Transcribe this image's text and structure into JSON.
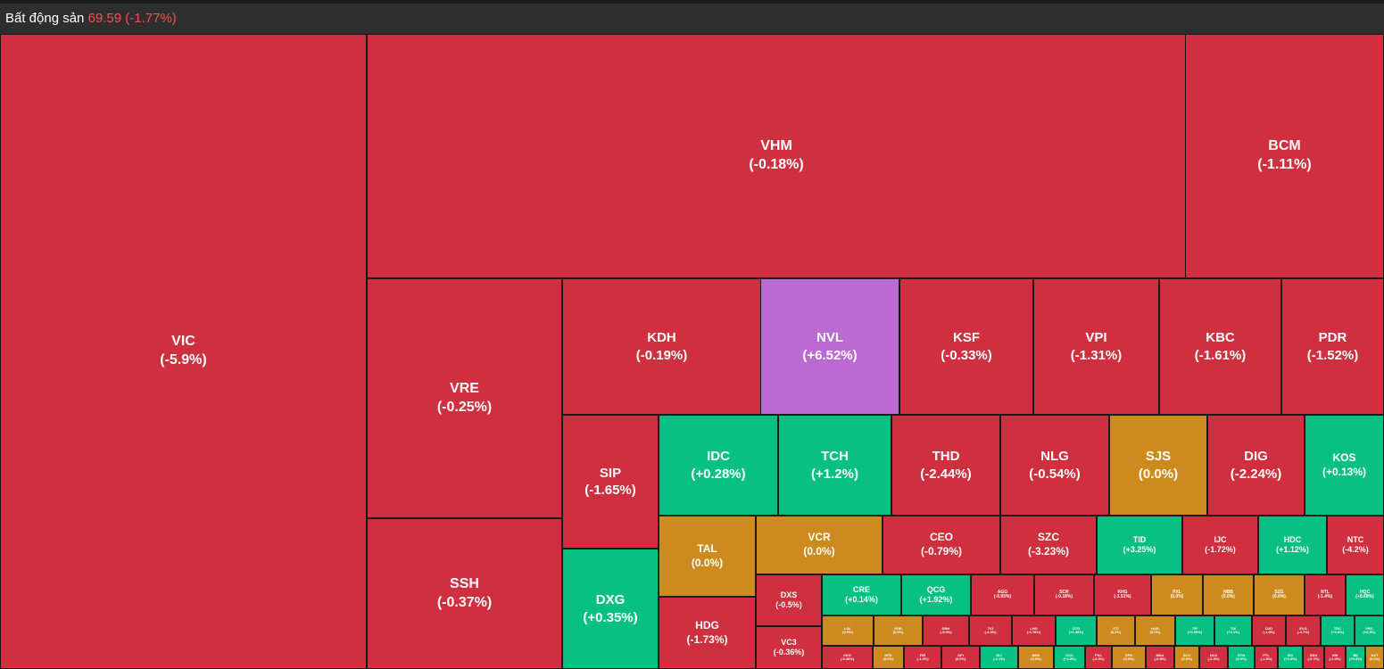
{
  "header": {
    "sector": "Bất động sản",
    "index": "69.59 (-1.77%)"
  },
  "colors": {
    "down": "#cf2f3e",
    "up": "#08c082",
    "flat": "#cc8a1f",
    "ceiling": "#b96bd1"
  },
  "tiles": [
    {
      "code": "VIC",
      "change": "(-5.9%)"
    },
    {
      "code": "VHM",
      "change": "(-0.18%)"
    },
    {
      "code": "BCM",
      "change": "(-1.11%)"
    },
    {
      "code": "VRE",
      "change": "(-0.25%)"
    },
    {
      "code": "SSH",
      "change": "(-0.37%)"
    },
    {
      "code": "KDH",
      "change": "(-0.19%)"
    },
    {
      "code": "NVL",
      "change": "(+6.52%)"
    },
    {
      "code": "KSF",
      "change": "(-0.33%)"
    },
    {
      "code": "VPI",
      "change": "(-1.31%)"
    },
    {
      "code": "KBC",
      "change": "(-1.61%)"
    },
    {
      "code": "PDR",
      "change": "(-1.52%)"
    },
    {
      "code": "SIP",
      "change": "(-1.65%)"
    },
    {
      "code": "DXG",
      "change": "(+0.35%)"
    },
    {
      "code": "IDC",
      "change": "(+0.28%)"
    },
    {
      "code": "TCH",
      "change": "(+1.2%)"
    },
    {
      "code": "THD",
      "change": "(-2.44%)"
    },
    {
      "code": "NLG",
      "change": "(-0.54%)"
    },
    {
      "code": "SJS",
      "change": "(0.0%)"
    },
    {
      "code": "DIG",
      "change": "(-2.24%)"
    },
    {
      "code": "KOS",
      "change": "(+0.13%)"
    },
    {
      "code": "TAL",
      "change": "(0.0%)"
    },
    {
      "code": "HDG",
      "change": "(-1.73%)"
    },
    {
      "code": "VCR",
      "change": "(0.0%)"
    },
    {
      "code": "CEO",
      "change": "(-0.79%)"
    },
    {
      "code": "SZC",
      "change": "(-3.23%)"
    },
    {
      "code": "TID",
      "change": "(+3.25%)"
    },
    {
      "code": "IJC",
      "change": "(-1.72%)"
    },
    {
      "code": "HDC",
      "change": "(+1.12%)"
    },
    {
      "code": "NTC",
      "change": "(-4.2%)"
    },
    {
      "code": "DXS",
      "change": "(-0.5%)"
    },
    {
      "code": "VC3",
      "change": "(-0.36%)"
    },
    {
      "code": "CRE",
      "change": "(+0.14%)"
    },
    {
      "code": "QCG",
      "change": "(+1.92%)"
    },
    {
      "code": "AGG",
      "change": "(-0.93%)"
    },
    {
      "code": "SCR",
      "change": "(-0.18%)"
    },
    {
      "code": "KHG",
      "change": "(-1.51%)"
    },
    {
      "code": "PXL",
      "change": "(0.0%)"
    },
    {
      "code": "NBB",
      "change": "(0.0%)"
    },
    {
      "code": "SZG",
      "change": "(0.0%)"
    },
    {
      "code": "NTL",
      "change": "(-1.4%)"
    },
    {
      "code": "HQC",
      "change": "(+0.68%)"
    },
    {
      "code": "LGL",
      "change": "(0.0%)"
    },
    {
      "code": "SGR",
      "change": "(0.0%)"
    },
    {
      "code": "DRH",
      "change": "(-5.0%)"
    },
    {
      "code": "TIG",
      "change": "(-4.4%)"
    },
    {
      "code": "LHG",
      "change": "(-0.78%)"
    },
    {
      "code": "DTD",
      "change": "(+1.48%)"
    },
    {
      "code": "ITC",
      "change": "(0.0%)"
    },
    {
      "code": "HAR",
      "change": "(0.0%)"
    },
    {
      "code": "TIP",
      "change": "(+0.55%)"
    },
    {
      "code": "TIX",
      "change": "(+0.1%)"
    },
    {
      "code": "D2D",
      "change": "(-1.9%)"
    },
    {
      "code": "EVG",
      "change": "(-4.7%)"
    },
    {
      "code": "TDC",
      "change": "(+0.6%)"
    },
    {
      "code": "VRC",
      "change": "(+0.9%)"
    },
    {
      "code": "CKG",
      "change": "(-0.46%)"
    },
    {
      "code": "HPX",
      "change": "(0.0%)"
    },
    {
      "code": "FIR",
      "change": "(-1.2%)"
    },
    {
      "code": "API",
      "change": "(0.0%)"
    },
    {
      "code": "IDJ",
      "change": "(-2.1%)"
    },
    {
      "code": "NDN",
      "change": "(0.0%)"
    },
    {
      "code": "CSC",
      "change": "(+1.0%)"
    },
    {
      "code": "PVL",
      "change": "(-3.0%)"
    },
    {
      "code": "VPH",
      "change": "(0.0%)"
    },
    {
      "code": "NHA",
      "change": "(-0.8%)"
    },
    {
      "code": "DLG",
      "change": "(0.0%)"
    },
    {
      "code": "HLD",
      "change": "(-2.3%)"
    },
    {
      "code": "HTN",
      "change": "(0.0%)"
    },
    {
      "code": "PTL",
      "change": "(-1.5%)"
    },
    {
      "code": "IDV",
      "change": "(+0.4%)"
    },
    {
      "code": "SDU",
      "change": "(-0.7%)"
    },
    {
      "code": "VNI",
      "change": "(-2.0%)"
    },
    {
      "code": "BII",
      "change": "(+0.3%)"
    },
    {
      "code": "NVT",
      "change": "(0.0%)"
    }
  ]
}
